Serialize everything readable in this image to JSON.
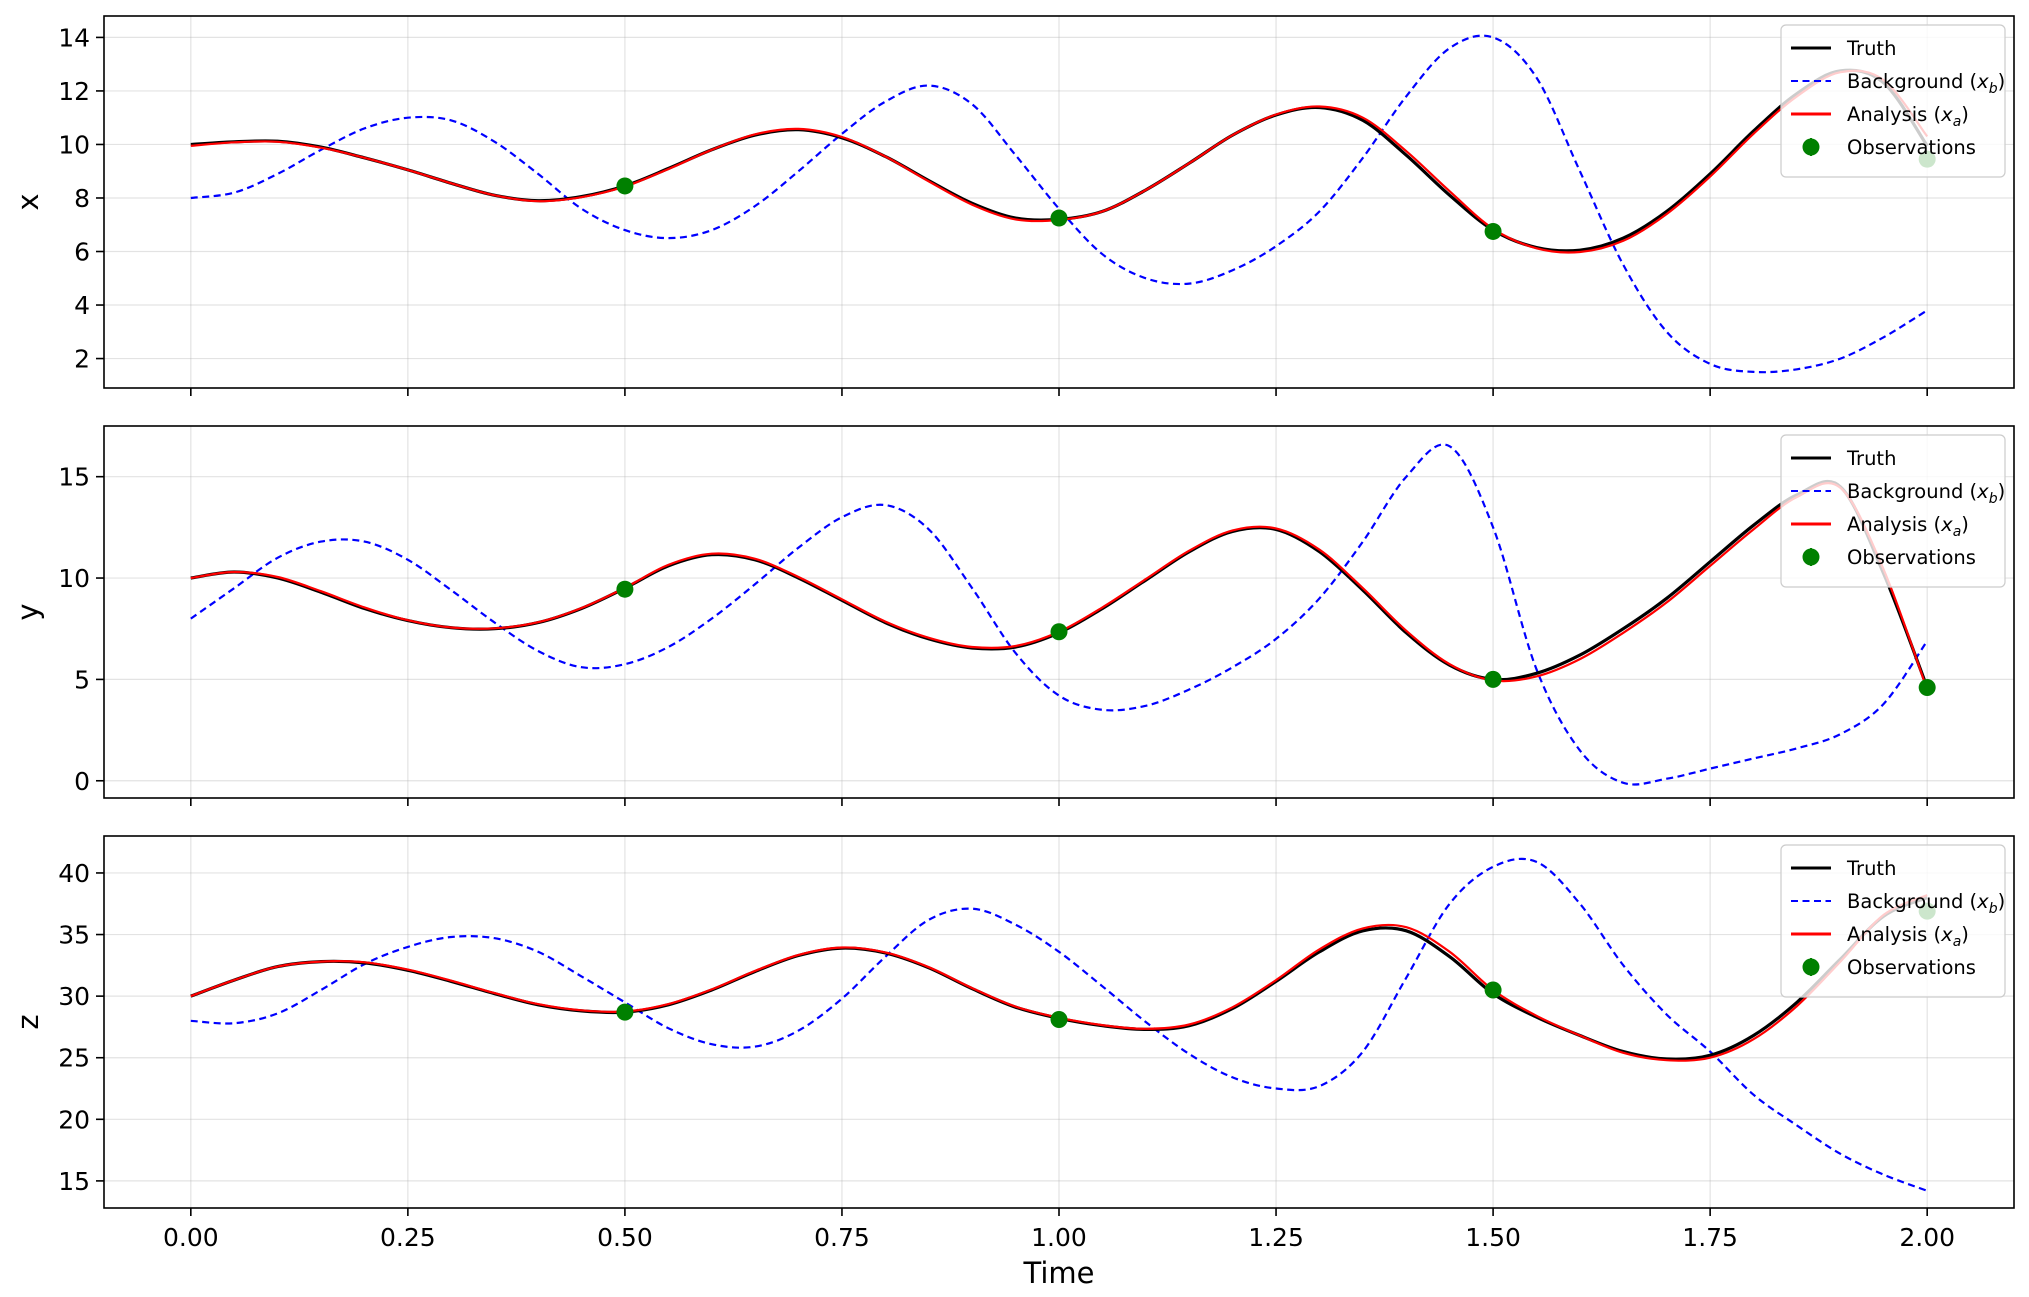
{
  "chart_data": [
    {
      "type": "line",
      "ylabel": "x",
      "xlim": [
        -0.1,
        2.1
      ],
      "ylim": [
        0.9,
        14.8
      ],
      "xticks": [
        0.0,
        0.25,
        0.5,
        0.75,
        1.0,
        1.25,
        1.5,
        1.75,
        2.0
      ],
      "xtick_labels": [],
      "yticks": [
        2,
        4,
        6,
        8,
        10,
        12,
        14
      ],
      "ytick_labels": [
        "2",
        "4",
        "6",
        "8",
        "10",
        "12",
        "14"
      ],
      "grid": true,
      "legend_position": "top-right",
      "legend": [
        {
          "label": "Truth",
          "style": "solid",
          "color": "#000000"
        },
        {
          "label": "Background (",
          "var": "x",
          "sub": "b",
          "suffix": ")",
          "style": "dashed",
          "color": "#0000ff"
        },
        {
          "label": "Analysis (",
          "var": "x",
          "sub": "a",
          "suffix": ")",
          "style": "solid",
          "color": "#ff0000"
        },
        {
          "label": "Observations",
          "style": "marker",
          "color": "#008000"
        }
      ],
      "series": [
        {
          "name": "Truth",
          "color": "#000000",
          "style": "solid",
          "width": 3.2,
          "x": [
            0.0,
            0.05,
            0.1,
            0.15,
            0.2,
            0.25,
            0.3,
            0.35,
            0.4,
            0.45,
            0.5,
            0.55,
            0.6,
            0.65,
            0.7,
            0.75,
            0.8,
            0.85,
            0.9,
            0.95,
            1.0,
            1.05,
            1.1,
            1.15,
            1.2,
            1.25,
            1.3,
            1.35,
            1.4,
            1.45,
            1.5,
            1.55,
            1.6,
            1.65,
            1.7,
            1.75,
            1.8,
            1.85,
            1.9,
            1.95,
            2.0
          ],
          "y": [
            10.0,
            10.1,
            10.12,
            9.9,
            9.5,
            9.05,
            8.55,
            8.1,
            7.9,
            8.05,
            8.45,
            9.1,
            9.8,
            10.35,
            10.55,
            10.25,
            9.55,
            8.65,
            7.8,
            7.25,
            7.2,
            7.5,
            8.3,
            9.3,
            10.35,
            11.1,
            11.38,
            10.9,
            9.6,
            8.1,
            6.8,
            6.15,
            6.05,
            6.5,
            7.5,
            8.9,
            10.5,
            11.9,
            12.75,
            12.3,
            9.95
          ]
        },
        {
          "name": "Analysis (xa)",
          "color": "#ff0000",
          "style": "solid",
          "width": 2.2,
          "x": [
            0.0,
            0.05,
            0.1,
            0.15,
            0.2,
            0.25,
            0.3,
            0.35,
            0.4,
            0.45,
            0.5,
            0.55,
            0.6,
            0.65,
            0.7,
            0.75,
            0.8,
            0.85,
            0.9,
            0.95,
            1.0,
            1.05,
            1.1,
            1.15,
            1.2,
            1.25,
            1.3,
            1.35,
            1.4,
            1.45,
            1.5,
            1.55,
            1.6,
            1.65,
            1.7,
            1.75,
            1.8,
            1.85,
            1.9,
            1.95,
            2.0
          ],
          "y": [
            9.95,
            10.08,
            10.1,
            9.88,
            9.5,
            9.05,
            8.55,
            8.1,
            7.88,
            8.03,
            8.43,
            9.08,
            9.8,
            10.38,
            10.58,
            10.28,
            9.55,
            8.62,
            7.75,
            7.2,
            7.18,
            7.5,
            8.3,
            9.3,
            10.35,
            11.12,
            11.42,
            11.0,
            9.75,
            8.25,
            6.85,
            6.12,
            5.98,
            6.4,
            7.4,
            8.8,
            10.4,
            11.8,
            12.7,
            12.4,
            10.3
          ]
        },
        {
          "name": "Background (xb)",
          "color": "#0000ff",
          "style": "dashed",
          "width": 2.2,
          "x": [
            0.0,
            0.05,
            0.1,
            0.15,
            0.2,
            0.25,
            0.3,
            0.35,
            0.4,
            0.45,
            0.5,
            0.55,
            0.6,
            0.65,
            0.7,
            0.75,
            0.8,
            0.85,
            0.9,
            0.95,
            1.0,
            1.05,
            1.1,
            1.15,
            1.2,
            1.25,
            1.3,
            1.35,
            1.4,
            1.45,
            1.5,
            1.55,
            1.6,
            1.65,
            1.7,
            1.75,
            1.8,
            1.85,
            1.9,
            1.95,
            2.0
          ],
          "y": [
            8.0,
            8.2,
            8.9,
            9.8,
            10.6,
            11.0,
            10.9,
            10.1,
            8.9,
            7.6,
            6.8,
            6.5,
            6.8,
            7.7,
            9.0,
            10.4,
            11.6,
            12.2,
            11.5,
            9.6,
            7.6,
            5.9,
            5.0,
            4.8,
            5.3,
            6.2,
            7.5,
            9.5,
            11.8,
            13.6,
            14.0,
            12.5,
            9.0,
            5.5,
            3.0,
            1.8,
            1.5,
            1.6,
            2.0,
            2.8,
            3.8
          ]
        },
        {
          "name": "Observations",
          "type": "scatter",
          "color": "#008000",
          "x": [
            0.5,
            1.0,
            1.5,
            2.0
          ],
          "y": [
            8.45,
            7.25,
            6.75,
            9.45
          ]
        }
      ]
    },
    {
      "type": "line",
      "ylabel": "y",
      "xlim": [
        -0.1,
        2.1
      ],
      "ylim": [
        -0.85,
        17.5
      ],
      "xticks": [
        0.0,
        0.25,
        0.5,
        0.75,
        1.0,
        1.25,
        1.5,
        1.75,
        2.0
      ],
      "xtick_labels": [],
      "yticks": [
        0,
        5,
        10,
        15
      ],
      "ytick_labels": [
        "0",
        "5",
        "10",
        "15"
      ],
      "grid": true,
      "legend_position": "top-right",
      "legend": [
        {
          "label": "Truth",
          "style": "solid",
          "color": "#000000"
        },
        {
          "label": "Background (",
          "var": "x",
          "sub": "b",
          "suffix": ")",
          "style": "dashed",
          "color": "#0000ff"
        },
        {
          "label": "Analysis (",
          "var": "x",
          "sub": "a",
          "suffix": ")",
          "style": "solid",
          "color": "#ff0000"
        },
        {
          "label": "Observations",
          "style": "marker",
          "color": "#008000"
        }
      ],
      "series": [
        {
          "name": "Truth",
          "color": "#000000",
          "style": "solid",
          "width": 3.2,
          "x": [
            0.0,
            0.05,
            0.1,
            0.15,
            0.2,
            0.25,
            0.3,
            0.35,
            0.4,
            0.45,
            0.5,
            0.55,
            0.6,
            0.65,
            0.7,
            0.75,
            0.8,
            0.85,
            0.9,
            0.95,
            1.0,
            1.05,
            1.1,
            1.15,
            1.2,
            1.25,
            1.3,
            1.35,
            1.4,
            1.45,
            1.5,
            1.55,
            1.6,
            1.65,
            1.7,
            1.75,
            1.8,
            1.85,
            1.9,
            1.95,
            2.0
          ],
          "y": [
            10.0,
            10.3,
            10.0,
            9.3,
            8.5,
            7.9,
            7.55,
            7.5,
            7.8,
            8.5,
            9.5,
            10.6,
            11.15,
            10.9,
            10.0,
            8.9,
            7.8,
            7.0,
            6.55,
            6.6,
            7.3,
            8.5,
            9.9,
            11.3,
            12.3,
            12.4,
            11.3,
            9.4,
            7.3,
            5.7,
            5.0,
            5.3,
            6.2,
            7.5,
            9.0,
            10.8,
            12.6,
            14.1,
            14.5,
            10.2,
            4.6
          ]
        },
        {
          "name": "Analysis (xa)",
          "color": "#ff0000",
          "style": "solid",
          "width": 2.2,
          "x": [
            0.0,
            0.05,
            0.1,
            0.15,
            0.2,
            0.25,
            0.3,
            0.35,
            0.4,
            0.45,
            0.5,
            0.55,
            0.6,
            0.65,
            0.7,
            0.75,
            0.8,
            0.85,
            0.9,
            0.95,
            1.0,
            1.05,
            1.1,
            1.15,
            1.2,
            1.25,
            1.3,
            1.35,
            1.4,
            1.45,
            1.5,
            1.55,
            1.6,
            1.65,
            1.7,
            1.75,
            1.8,
            1.85,
            1.9,
            1.95,
            2.0
          ],
          "y": [
            10.0,
            10.3,
            10.05,
            9.35,
            8.55,
            7.92,
            7.56,
            7.52,
            7.82,
            8.52,
            9.52,
            10.65,
            11.2,
            10.95,
            10.05,
            8.95,
            7.85,
            7.05,
            6.6,
            6.65,
            7.35,
            8.55,
            9.95,
            11.35,
            12.35,
            12.45,
            11.4,
            9.5,
            7.4,
            5.75,
            4.95,
            5.15,
            6.0,
            7.3,
            8.8,
            10.6,
            12.4,
            14.0,
            14.45,
            10.4,
            4.5
          ]
        },
        {
          "name": "Background (xb)",
          "color": "#0000ff",
          "style": "dashed",
          "width": 2.2,
          "x": [
            0.0,
            0.05,
            0.1,
            0.15,
            0.2,
            0.25,
            0.3,
            0.35,
            0.4,
            0.45,
            0.5,
            0.55,
            0.6,
            0.65,
            0.7,
            0.75,
            0.8,
            0.85,
            0.9,
            0.95,
            1.0,
            1.05,
            1.1,
            1.15,
            1.2,
            1.25,
            1.3,
            1.35,
            1.4,
            1.45,
            1.5,
            1.55,
            1.6,
            1.65,
            1.7,
            1.75,
            1.8,
            1.85,
            1.9,
            1.95,
            2.0
          ],
          "y": [
            8.0,
            9.5,
            11.0,
            11.8,
            11.8,
            10.9,
            9.4,
            7.8,
            6.4,
            5.6,
            5.75,
            6.6,
            8.0,
            9.7,
            11.5,
            13.0,
            13.6,
            12.4,
            9.5,
            6.3,
            4.2,
            3.5,
            3.7,
            4.5,
            5.6,
            7.0,
            9.0,
            11.8,
            15.0,
            16.5,
            12.5,
            5.5,
            1.5,
            -0.1,
            0.1,
            0.6,
            1.1,
            1.6,
            2.3,
            3.8,
            6.9
          ]
        },
        {
          "name": "Observations",
          "type": "scatter",
          "color": "#008000",
          "x": [
            0.5,
            1.0,
            1.5,
            2.0
          ],
          "y": [
            9.45,
            7.35,
            5.0,
            4.6
          ]
        }
      ]
    },
    {
      "type": "line",
      "ylabel": "z",
      "xlabel": "Time",
      "xlim": [
        -0.1,
        2.1
      ],
      "ylim": [
        12.8,
        43.0
      ],
      "xticks": [
        0.0,
        0.25,
        0.5,
        0.75,
        1.0,
        1.25,
        1.5,
        1.75,
        2.0
      ],
      "xtick_labels": [
        "0.00",
        "0.25",
        "0.50",
        "0.75",
        "1.00",
        "1.25",
        "1.50",
        "1.75",
        "2.00"
      ],
      "yticks": [
        15,
        20,
        25,
        30,
        35,
        40
      ],
      "ytick_labels": [
        "15",
        "20",
        "25",
        "30",
        "35",
        "40"
      ],
      "grid": true,
      "legend_position": "top-right",
      "legend": [
        {
          "label": "Truth",
          "style": "solid",
          "color": "#000000"
        },
        {
          "label": "Background (",
          "var": "x",
          "sub": "b",
          "suffix": ")",
          "style": "dashed",
          "color": "#0000ff"
        },
        {
          "label": "Analysis (",
          "var": "x",
          "sub": "a",
          "suffix": ")",
          "style": "solid",
          "color": "#ff0000"
        },
        {
          "label": "Observations",
          "style": "marker",
          "color": "#008000"
        }
      ],
      "series": [
        {
          "name": "Truth",
          "color": "#000000",
          "style": "solid",
          "width": 3.2,
          "x": [
            0.0,
            0.05,
            0.1,
            0.15,
            0.2,
            0.25,
            0.3,
            0.35,
            0.4,
            0.45,
            0.5,
            0.55,
            0.6,
            0.65,
            0.7,
            0.75,
            0.8,
            0.85,
            0.9,
            0.95,
            1.0,
            1.05,
            1.1,
            1.15,
            1.2,
            1.25,
            1.3,
            1.35,
            1.4,
            1.45,
            1.5,
            1.55,
            1.6,
            1.65,
            1.7,
            1.75,
            1.8,
            1.85,
            1.9,
            1.95,
            2.0
          ],
          "y": [
            30.0,
            31.3,
            32.4,
            32.8,
            32.7,
            32.1,
            31.2,
            30.2,
            29.3,
            28.8,
            28.7,
            29.3,
            30.5,
            32.0,
            33.3,
            33.9,
            33.5,
            32.3,
            30.6,
            29.1,
            28.2,
            27.6,
            27.3,
            27.6,
            29.0,
            31.2,
            33.6,
            35.3,
            35.3,
            33.2,
            30.2,
            28.3,
            26.8,
            25.5,
            24.9,
            25.2,
            26.8,
            29.5,
            33.0,
            36.5,
            38.0
          ]
        },
        {
          "name": "Analysis (xa)",
          "color": "#ff0000",
          "style": "solid",
          "width": 2.2,
          "x": [
            0.0,
            0.05,
            0.1,
            0.15,
            0.2,
            0.25,
            0.3,
            0.35,
            0.4,
            0.45,
            0.5,
            0.55,
            0.6,
            0.65,
            0.7,
            0.75,
            0.8,
            0.85,
            0.9,
            0.95,
            1.0,
            1.05,
            1.1,
            1.15,
            1.2,
            1.25,
            1.3,
            1.35,
            1.4,
            1.45,
            1.5,
            1.55,
            1.6,
            1.65,
            1.7,
            1.75,
            1.8,
            1.85,
            1.9,
            1.95,
            2.0
          ],
          "y": [
            30.0,
            31.3,
            32.4,
            32.8,
            32.75,
            32.15,
            31.25,
            30.25,
            29.35,
            28.85,
            28.75,
            29.35,
            30.55,
            32.05,
            33.35,
            33.95,
            33.55,
            32.35,
            30.65,
            29.15,
            28.25,
            27.65,
            27.35,
            27.7,
            29.1,
            31.3,
            33.8,
            35.5,
            35.6,
            33.6,
            30.5,
            28.4,
            26.8,
            25.4,
            24.8,
            25.0,
            26.5,
            29.2,
            32.8,
            36.6,
            38.2
          ]
        },
        {
          "name": "Background (xb)",
          "color": "#0000ff",
          "style": "dashed",
          "width": 2.2,
          "x": [
            0.0,
            0.05,
            0.1,
            0.15,
            0.2,
            0.25,
            0.3,
            0.35,
            0.4,
            0.45,
            0.5,
            0.55,
            0.6,
            0.65,
            0.7,
            0.75,
            0.8,
            0.85,
            0.9,
            0.95,
            1.0,
            1.05,
            1.1,
            1.15,
            1.2,
            1.25,
            1.3,
            1.35,
            1.4,
            1.45,
            1.5,
            1.55,
            1.6,
            1.65,
            1.7,
            1.75,
            1.8,
            1.85,
            1.9,
            1.95,
            2.0
          ],
          "y": [
            28.0,
            27.8,
            28.6,
            30.5,
            32.6,
            34.0,
            34.8,
            34.7,
            33.6,
            31.6,
            29.5,
            27.4,
            26.1,
            25.9,
            27.2,
            29.8,
            33.2,
            36.2,
            37.1,
            35.8,
            33.6,
            30.8,
            27.9,
            25.3,
            23.4,
            22.5,
            22.7,
            25.5,
            31.5,
            37.5,
            40.5,
            40.9,
            37.5,
            32.5,
            28.5,
            25.5,
            22.0,
            19.5,
            17.2,
            15.5,
            14.2
          ]
        },
        {
          "name": "Observations",
          "type": "scatter",
          "color": "#008000",
          "x": [
            0.5,
            1.0,
            1.5,
            2.0
          ],
          "y": [
            28.7,
            28.1,
            30.5,
            36.9
          ]
        }
      ]
    }
  ]
}
